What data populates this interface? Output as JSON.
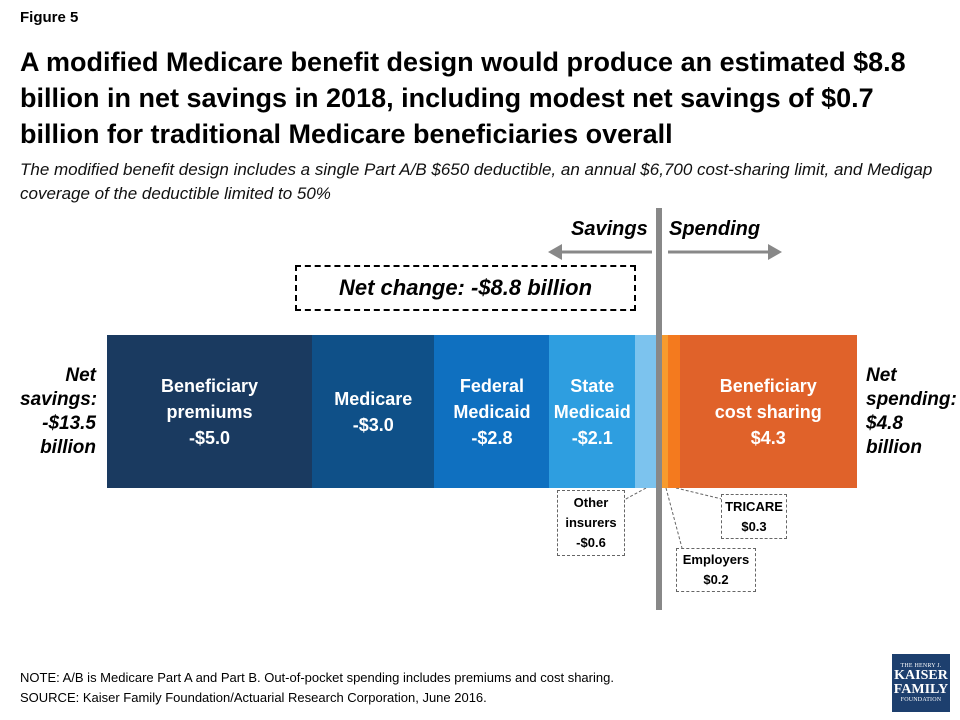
{
  "figure_label": "Figure 5",
  "title": "A modified Medicare benefit design would produce an estimated $8.8 billion in net savings in 2018, including modest net savings of $0.7 billion for traditional Medicare beneficiaries overall",
  "subtitle": "The modified benefit design includes a single Part A/B $650 deductible, an annual $6,700 cost-sharing limit, and Medigap coverage of the deductible limited to 50%",
  "direction_left": "Savings",
  "direction_right": "Spending",
  "net_change_label": "Net change: -$8.8 billion",
  "net_savings": {
    "line1": "Net",
    "line2": "savings:",
    "line3": "-$13.5",
    "line4": "billion"
  },
  "net_spending": {
    "line1": "Net",
    "line2": "spending:",
    "line3": "$4.8",
    "line4": "billion"
  },
  "chart_data": {
    "type": "bar",
    "orientation": "horizontal-stacked",
    "unit": "billion $",
    "segments": [
      {
        "name": "Beneficiary premiums",
        "value": -5.0,
        "label": "Beneficiary\npremiums\n-$5.0",
        "color": "#1a3a60"
      },
      {
        "name": "Medicare",
        "value": -3.0,
        "label": "Medicare\n-$3.0",
        "color": "#0f5088"
      },
      {
        "name": "Federal Medicaid",
        "value": -2.8,
        "label": "Federal\nMedicaid\n-$2.8",
        "color": "#0f70c0"
      },
      {
        "name": "State Medicaid",
        "value": -2.1,
        "label": "State\nMedicaid\n-$2.1",
        "color": "#2e9ee0"
      },
      {
        "name": "Other insurers",
        "value": -0.6,
        "label": "",
        "color": "#7cc3ee"
      },
      {
        "name": "Employers",
        "value": 0.2,
        "label": "",
        "color": "#f79b2e"
      },
      {
        "name": "TRICARE",
        "value": 0.3,
        "label": "",
        "color": "#f47a1e"
      },
      {
        "name": "Beneficiary cost sharing",
        "value": 4.3,
        "label": "Beneficiary\ncost sharing\n$4.3",
        "color": "#e0622a"
      }
    ],
    "callouts": [
      {
        "name": "Other insurers",
        "lines": [
          "Other",
          "insurers",
          "-$0.6"
        ]
      },
      {
        "name": "TRICARE",
        "lines": [
          "TRICARE",
          "$0.3"
        ]
      },
      {
        "name": "Employers",
        "lines": [
          "Employers",
          "$0.2"
        ]
      }
    ],
    "net_savings": -13.5,
    "net_spending": 4.8,
    "net_change": -8.8
  },
  "footnote": {
    "note": "NOTE: A/B is Medicare Part A and Part B. Out-of-pocket spending includes premiums and cost sharing.",
    "source": "SOURCE: Kaiser Family Foundation/Actuarial Research Corporation, June 2016."
  },
  "logo": {
    "line1": "THE HENRY J.",
    "line2": "KAISER",
    "line3": "FAMILY",
    "line4": "FOUNDATION"
  },
  "colors": {
    "axis": "#888888",
    "arrow": "#888888"
  }
}
